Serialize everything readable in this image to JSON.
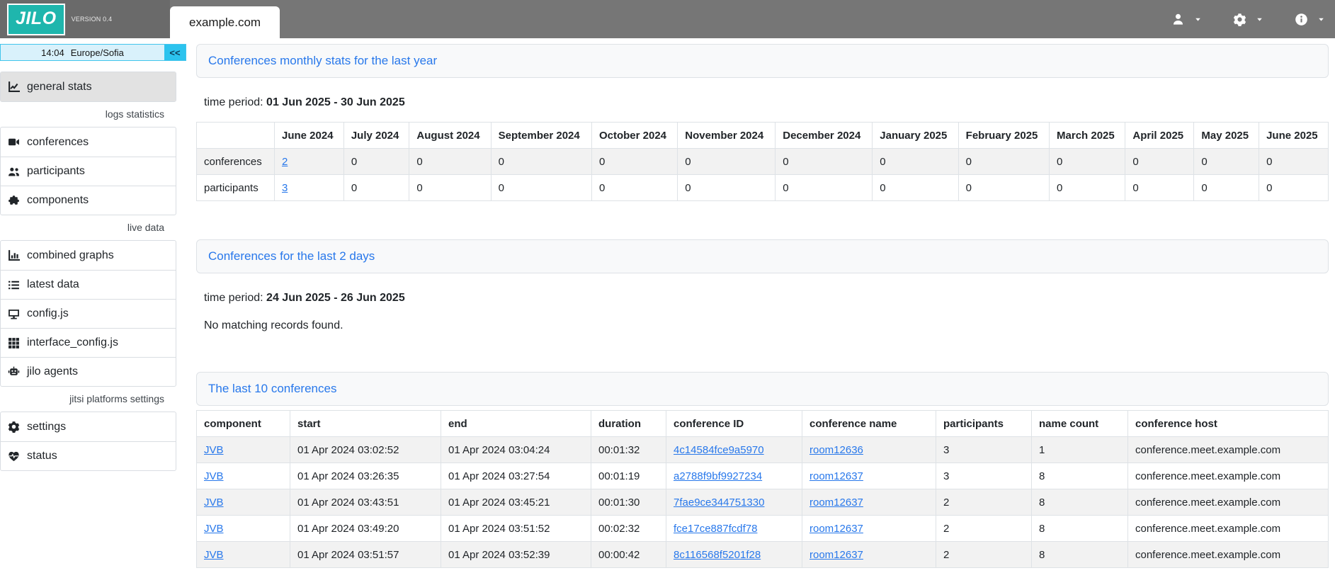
{
  "navbar": {
    "brand": "JILO",
    "version": "VERSION 0.4",
    "platform_tab": "example.com",
    "menus": [
      {
        "name": "user-menu",
        "icon": "user"
      },
      {
        "name": "settings-menu",
        "icon": "gear"
      },
      {
        "name": "info-menu",
        "icon": "info"
      }
    ]
  },
  "sidebar": {
    "clock": {
      "time": "14:04",
      "timezone": "Europe/Sofia",
      "collapse_label": "<<"
    },
    "groups": [
      {
        "header": "",
        "items": [
          {
            "label": "general stats",
            "icon": "chart-line",
            "active": true
          }
        ]
      },
      {
        "header": "logs statistics",
        "items": [
          {
            "label": "conferences",
            "icon": "video"
          },
          {
            "label": "participants",
            "icon": "users"
          },
          {
            "label": "components",
            "icon": "puzzle"
          }
        ]
      },
      {
        "header": "live data",
        "items": [
          {
            "label": "combined graphs",
            "icon": "bar-chart"
          },
          {
            "label": "latest data",
            "icon": "list"
          },
          {
            "label": "config.js",
            "icon": "monitor"
          },
          {
            "label": "interface_config.js",
            "icon": "grid"
          },
          {
            "label": "jilo agents",
            "icon": "robot"
          }
        ]
      },
      {
        "header": "jitsi platforms settings",
        "items": [
          {
            "label": "settings",
            "icon": "gear"
          },
          {
            "label": "status",
            "icon": "heart-pulse"
          }
        ]
      }
    ]
  },
  "sections": {
    "monthly": {
      "title": "Conferences monthly stats for the last year",
      "time_period_label": "time period:",
      "time_period": "01 Jun 2025 - 30 Jun 2025",
      "table": {
        "columns": [
          "",
          "June 2024",
          "July 2024",
          "August 2024",
          "September 2024",
          "October 2024",
          "November 2024",
          "December 2024",
          "January 2025",
          "February 2025",
          "March 2025",
          "April 2025",
          "May 2025",
          "June 2025"
        ],
        "rows": [
          {
            "label": "conferences",
            "values": [
              "2",
              "0",
              "0",
              "0",
              "0",
              "0",
              "0",
              "0",
              "0",
              "0",
              "0",
              "0",
              "0"
            ],
            "link_cols": [
              0
            ]
          },
          {
            "label": "participants",
            "values": [
              "3",
              "0",
              "0",
              "0",
              "0",
              "0",
              "0",
              "0",
              "0",
              "0",
              "0",
              "0",
              "0"
            ],
            "link_cols": [
              0
            ]
          }
        ]
      }
    },
    "recent": {
      "title": "Conferences for the last 2 days",
      "time_period_label": "time period:",
      "time_period": "24 Jun 2025 - 26 Jun 2025",
      "empty_message": "No matching records found."
    },
    "last10": {
      "title": "The last 10 conferences",
      "table": {
        "columns": [
          "component",
          "start",
          "end",
          "duration",
          "conference ID",
          "conference name",
          "participants",
          "name count",
          "conference host"
        ],
        "link_cols": [
          0,
          4,
          5
        ],
        "rows": [
          [
            "JVB",
            "01 Apr 2024 03:02:52",
            "01 Apr 2024 03:04:24",
            "00:01:32",
            "4c14584fce9a5970",
            "room12636",
            "3",
            "1",
            "conference.meet.example.com"
          ],
          [
            "JVB",
            "01 Apr 2024 03:26:35",
            "01 Apr 2024 03:27:54",
            "00:01:19",
            "a2788f9bf9927234",
            "room12637",
            "3",
            "8",
            "conference.meet.example.com"
          ],
          [
            "JVB",
            "01 Apr 2024 03:43:51",
            "01 Apr 2024 03:45:21",
            "00:01:30",
            "7fae9ce344751330",
            "room12637",
            "2",
            "8",
            "conference.meet.example.com"
          ],
          [
            "JVB",
            "01 Apr 2024 03:49:20",
            "01 Apr 2024 03:51:52",
            "00:02:32",
            "fce17ce887fcdf78",
            "room12637",
            "2",
            "8",
            "conference.meet.example.com"
          ],
          [
            "JVB",
            "01 Apr 2024 03:51:57",
            "01 Apr 2024 03:52:39",
            "00:00:42",
            "8c116568f5201f28",
            "room12637",
            "2",
            "8",
            "conference.meet.example.com"
          ]
        ]
      }
    }
  },
  "colors": {
    "brand_teal": "#1fb6ad",
    "navbar_gray": "#767676",
    "link_blue": "#2878eb",
    "clock_cyan": "#2cc3ee",
    "stripe_gray": "#f2f2f2"
  }
}
